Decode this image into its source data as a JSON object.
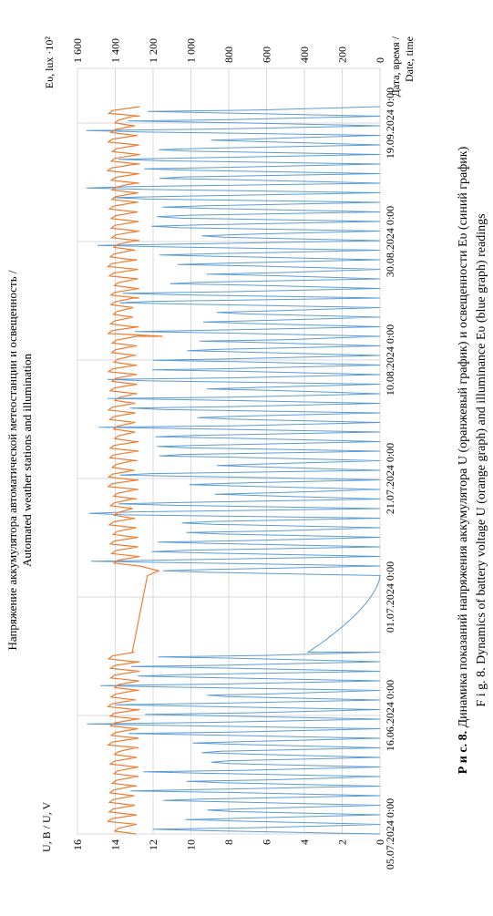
{
  "chart_data": {
    "type": "line",
    "title_line1": "Напряжение аккумулятора автоматической метеостанции и освещенность /",
    "title_line2": "Automated weather stations and illumination",
    "y_left_label": "U, В / U, V",
    "y_right_label": "Eυ, lux ·10²",
    "x_label_line1": "Дата, время /",
    "x_label_line2": "Date, time",
    "y_left_ticks": [
      "0",
      "2",
      "4",
      "6",
      "8",
      "10",
      "12",
      "14",
      "16"
    ],
    "y_right_ticks": [
      "0",
      "200",
      "400",
      "600",
      "800",
      "1 000",
      "1 200",
      "1 400",
      "1 600"
    ],
    "x_ticks": [
      "05.07.2024 0:00",
      "16.06.2024 0:00",
      "01.07.2024 0:00",
      "21.07.2024 0:00",
      "10.08.2024 0:00",
      "30.08.2024 0:00",
      "19.09.2024 0:00"
    ],
    "ylim_left": [
      0,
      16
    ],
    "ylim_right": [
      0,
      1600
    ],
    "grid": true,
    "series": [
      {
        "name": "U (оранжевый график)",
        "color": "#ed7d31"
      },
      {
        "name": "Eυ (синий график)",
        "color": "#5b9bd5"
      }
    ],
    "segments": {
      "orange_day_ranges": [
        [
          0,
          19
        ],
        [
          28,
          76
        ]
      ],
      "orange_gap_days": [
        19,
        27
      ],
      "orange_daily_max": 14.4,
      "orange_daily_min": 12.7,
      "orange_dip_day": 52,
      "blue_day_ranges": [
        [
          0,
          19
        ],
        [
          27,
          76
        ]
      ],
      "blue_decay_days": [
        19,
        27
      ],
      "blue_peak_right": 1560
    }
  },
  "caption": {
    "ru_prefix": "Р и с.  8.",
    "ru_text": " Динамика показаний напряжения аккумулятора U (оранжевый график) и освещенности Eυ (синий график)",
    "en_prefix": "F i g.  8.",
    "en_text": " Dynamics of battery voltage U (orange graph) and illuminance Eυ (blue graph) readings"
  }
}
